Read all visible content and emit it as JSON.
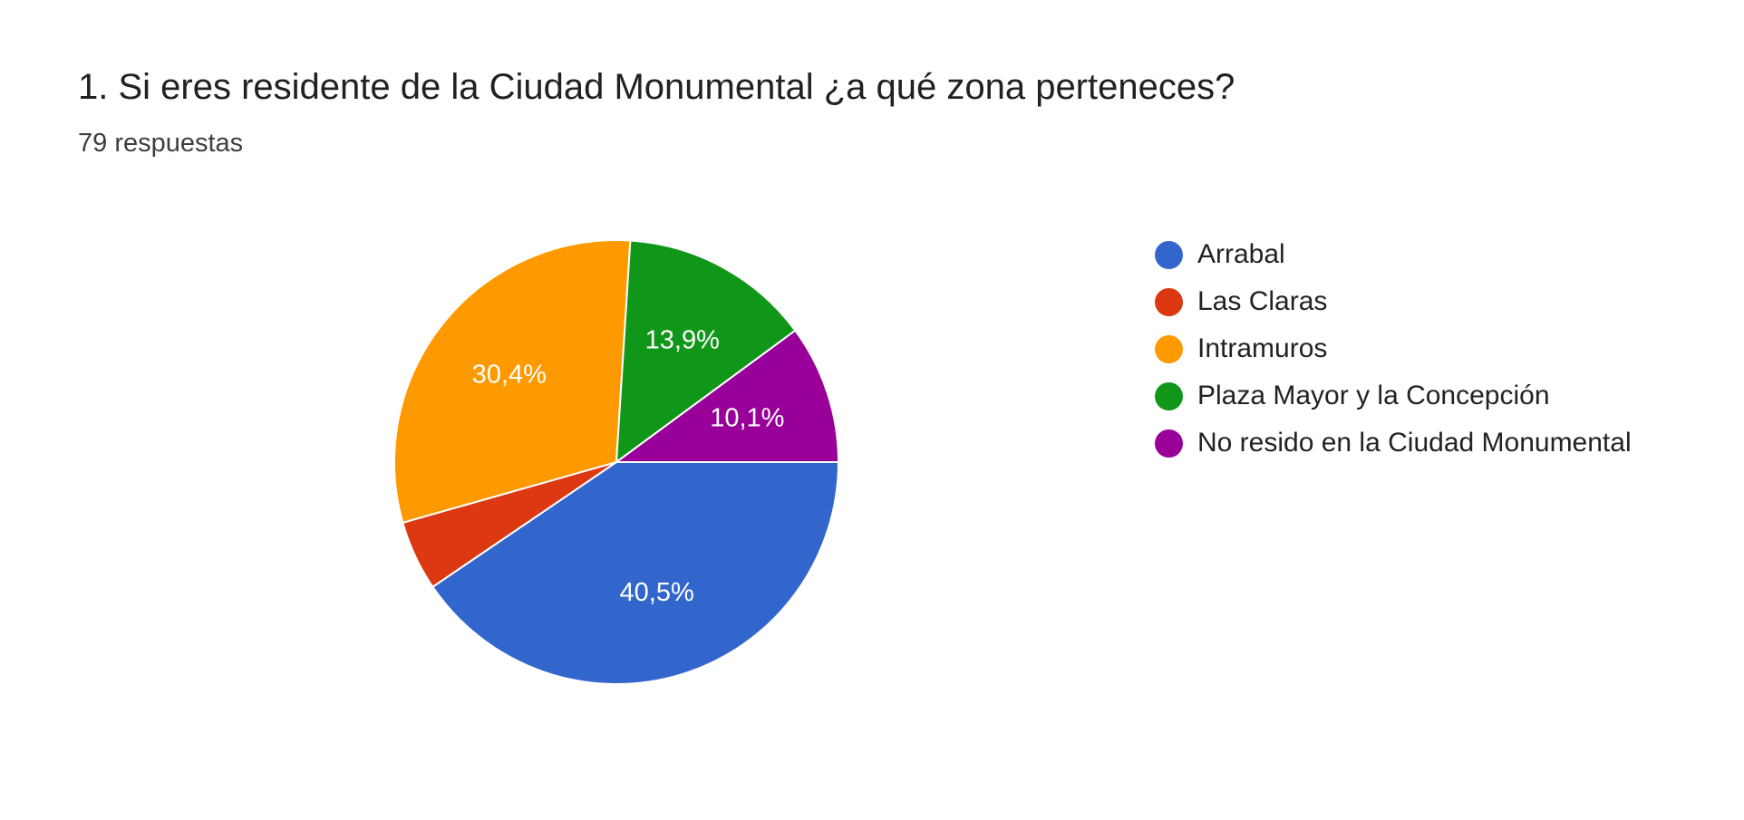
{
  "question": {
    "title": "1. Si eres residente de la Ciudad Monumental ¿a qué zona perteneces?",
    "responses": "79 respuestas"
  },
  "chart_data": {
    "type": "pie",
    "title": "1. Si eres residente de la Ciudad Monumental ¿a qué zona perteneces?",
    "subtitle": "79 respuestas",
    "legend_position": "right",
    "slices": [
      {
        "label": "Arrabal",
        "value": 40.5,
        "display": "40,5%",
        "color": "#3366cc"
      },
      {
        "label": "Las Claras",
        "value": 5.1,
        "display": "",
        "color": "#dc3912"
      },
      {
        "label": "Intramuros",
        "value": 30.4,
        "display": "30,4%",
        "color": "#ff9900"
      },
      {
        "label": "Plaza Mayor y la Concepción",
        "value": 13.9,
        "display": "13,9%",
        "color": "#109618"
      },
      {
        "label": "No resido en la Ciudad Monumental",
        "value": 10.1,
        "display": "10,1%",
        "color": "#990099"
      }
    ]
  }
}
